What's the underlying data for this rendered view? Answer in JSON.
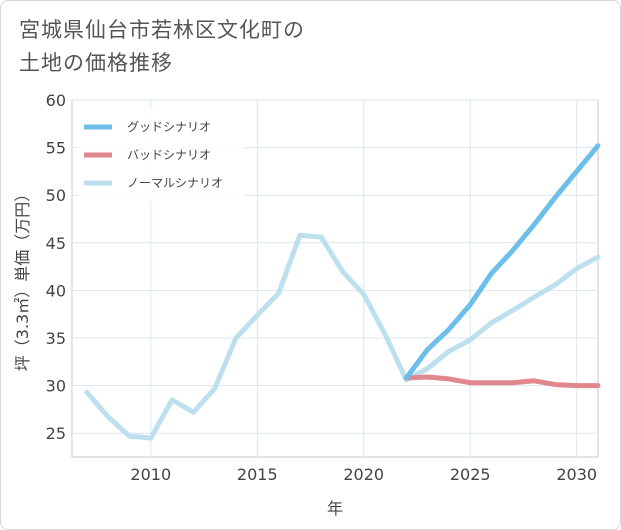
{
  "title_lines": [
    "宮城県仙台市若林区文化町の",
    "土地の価格推移"
  ],
  "chart_data": {
    "type": "line",
    "xlabel": "年",
    "ylabel": "坪（3.3㎡）単価（万円）",
    "xlim": [
      2006.3,
      2031
    ],
    "ylim": [
      22.5,
      60
    ],
    "x_ticks": [
      2010,
      2015,
      2020,
      2025,
      2030
    ],
    "y_ticks": [
      25,
      30,
      35,
      40,
      45,
      50,
      55,
      60
    ],
    "grid": true,
    "legend_position": "top-left",
    "series": [
      {
        "name": "グッドシナリオ",
        "color": "#6cbfea",
        "points": [
          [
            2022,
            30.8
          ],
          [
            2023,
            33.8
          ],
          [
            2024,
            35.9
          ],
          [
            2025,
            38.5
          ],
          [
            2026,
            41.8
          ],
          [
            2027,
            44.2
          ],
          [
            2028,
            46.9
          ],
          [
            2029,
            49.8
          ],
          [
            2030,
            52.5
          ],
          [
            2031,
            55.2
          ]
        ]
      },
      {
        "name": "バッドシナリオ",
        "color": "#e0888d",
        "points": [
          [
            2022,
            30.8
          ],
          [
            2023,
            30.9
          ],
          [
            2024,
            30.7
          ],
          [
            2025,
            30.3
          ],
          [
            2026,
            30.3
          ],
          [
            2027,
            30.3
          ],
          [
            2028,
            30.5
          ],
          [
            2029,
            30.1
          ],
          [
            2030,
            30.0
          ],
          [
            2031,
            30.0
          ]
        ]
      },
      {
        "name": "ノーマルシナリオ",
        "color": "#bde0ee",
        "points": [
          [
            2007,
            29.3
          ],
          [
            2008,
            26.7
          ],
          [
            2009,
            24.7
          ],
          [
            2010,
            24.5
          ],
          [
            2011,
            28.5
          ],
          [
            2012,
            27.2
          ],
          [
            2013,
            29.7
          ],
          [
            2014,
            35.0
          ],
          [
            2015,
            37.4
          ],
          [
            2016,
            39.7
          ],
          [
            2017,
            45.8
          ],
          [
            2018,
            45.6
          ],
          [
            2019,
            42.0
          ],
          [
            2020,
            39.6
          ],
          [
            2021,
            35.4
          ],
          [
            2022,
            30.6
          ],
          [
            2023,
            31.8
          ],
          [
            2024,
            33.6
          ],
          [
            2025,
            34.8
          ],
          [
            2026,
            36.6
          ],
          [
            2027,
            37.9
          ],
          [
            2028,
            39.3
          ],
          [
            2029,
            40.6
          ],
          [
            2030,
            42.3
          ],
          [
            2031,
            43.5
          ]
        ]
      }
    ]
  }
}
